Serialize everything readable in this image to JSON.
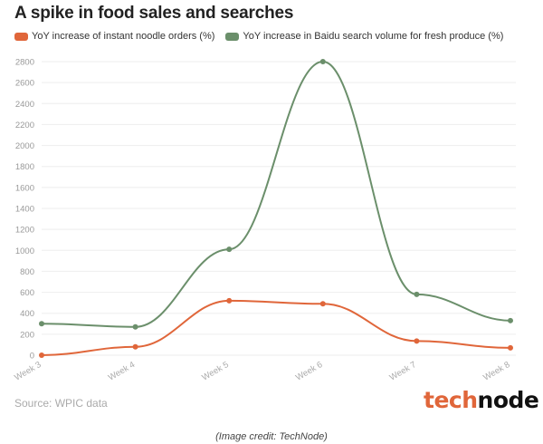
{
  "chart_data": {
    "type": "line",
    "title": "A spike in food sales and searches",
    "categories": [
      "Week 3",
      "Week 4",
      "Week 5",
      "Week 6",
      "Week 7",
      "Week 8"
    ],
    "series": [
      {
        "name": "YoY increase of instant noodle orders (%)",
        "color": "#e0663a",
        "values": [
          0,
          80,
          520,
          490,
          135,
          70
        ]
      },
      {
        "name": "YoY increase in Baidu search volume for fresh produce (%)",
        "color": "#6b8f6b",
        "values": [
          300,
          270,
          1010,
          2800,
          580,
          330
        ]
      }
    ],
    "ylim": [
      0,
      2800
    ],
    "yticks": [
      0,
      200,
      400,
      600,
      800,
      1000,
      1200,
      1400,
      1600,
      1800,
      2000,
      2200,
      2400,
      2600,
      2800
    ],
    "grid": true,
    "legend": "top-left",
    "source": "Source: WPIC data"
  },
  "logo": {
    "part1": "tech",
    "part2": "node",
    "color1": "#e0663a",
    "color2": "#111111"
  },
  "credit": "(Image credit: TechNode)"
}
